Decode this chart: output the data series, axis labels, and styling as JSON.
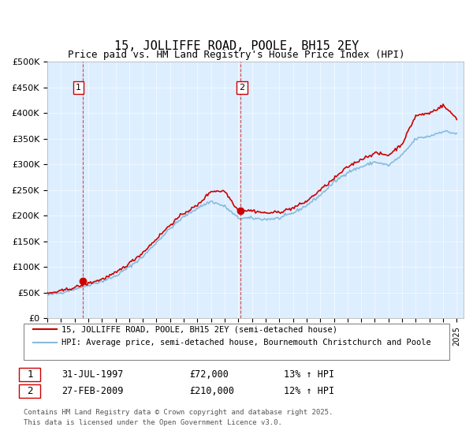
{
  "title": "15, JOLLIFFE ROAD, POOLE, BH15 2EY",
  "subtitle": "Price paid vs. HM Land Registry's House Price Index (HPI)",
  "title_fontsize": 11,
  "subtitle_fontsize": 9,
  "background_color": "#ffffff",
  "plot_bg_color": "#ddeeff",
  "ylim": [
    0,
    500000
  ],
  "yticks": [
    0,
    50000,
    100000,
    150000,
    200000,
    250000,
    300000,
    350000,
    400000,
    450000,
    500000
  ],
  "ytick_labels": [
    "£0",
    "£50K",
    "£100K",
    "£150K",
    "£200K",
    "£250K",
    "£300K",
    "£350K",
    "£400K",
    "£450K",
    "£500K"
  ],
  "xlim_start": 1995.0,
  "xlim_end": 2025.5,
  "red_color": "#cc0000",
  "blue_color": "#88bbdd",
  "marker1_x": 1997.58,
  "marker1_y": 72000,
  "marker1_label": "1",
  "marker1_date": "31-JUL-1997",
  "marker1_price": "£72,000",
  "marker1_hpi": "13% ↑ HPI",
  "marker2_x": 2009.15,
  "marker2_y": 210000,
  "marker2_label": "2",
  "marker2_date": "27-FEB-2009",
  "marker2_price": "£210,000",
  "marker2_hpi": "12% ↑ HPI",
  "legend_line1": "15, JOLLIFFE ROAD, POOLE, BH15 2EY (semi-detached house)",
  "legend_line2": "HPI: Average price, semi-detached house, Bournemouth Christchurch and Poole",
  "footnote": "Contains HM Land Registry data © Crown copyright and database right 2025.\nThis data is licensed under the Open Government Licence v3.0."
}
